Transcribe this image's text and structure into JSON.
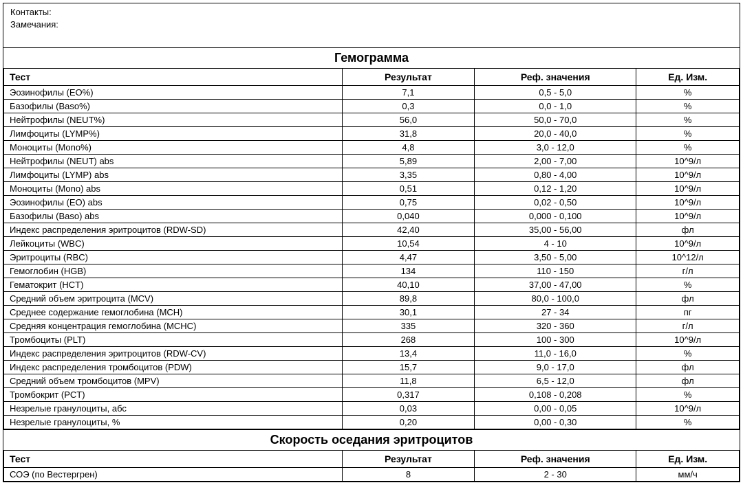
{
  "header": {
    "contacts_label": "Контакты:",
    "notes_label": "Замечания:"
  },
  "section1": {
    "title": "Гемограмма",
    "columns": {
      "test": "Тест",
      "result": "Результат",
      "ref": "Реф. значения",
      "unit": "Ед. Изм."
    },
    "rows": [
      {
        "test": "Эозинофилы (EO%)",
        "result": "7,1",
        "ref": "0,5 - 5,0",
        "unit": "%"
      },
      {
        "test": "Базофилы (Baso%)",
        "result": "0,3",
        "ref": "0,0 - 1,0",
        "unit": "%"
      },
      {
        "test": "Нейтрофилы (NEUT%)",
        "result": "56,0",
        "ref": "50,0 - 70,0",
        "unit": "%"
      },
      {
        "test": "Лимфоциты (LYMP%)",
        "result": "31,8",
        "ref": "20,0 - 40,0",
        "unit": "%"
      },
      {
        "test": "Моноциты (Mono%)",
        "result": "4,8",
        "ref": "3,0 - 12,0",
        "unit": "%"
      },
      {
        "test": "Нейтрофилы (NEUT) abs",
        "result": "5,89",
        "ref": "2,00 - 7,00",
        "unit": "10^9/л"
      },
      {
        "test": "Лимфоциты (LYMP) abs",
        "result": "3,35",
        "ref": "0,80 - 4,00",
        "unit": "10^9/л"
      },
      {
        "test": "Моноциты (Mono) abs",
        "result": "0,51",
        "ref": "0,12 - 1,20",
        "unit": "10^9/л"
      },
      {
        "test": "Эозинофилы (EO) abs",
        "result": "0,75",
        "ref": "0,02 - 0,50",
        "unit": "10^9/л"
      },
      {
        "test": "Базофилы (Baso) abs",
        "result": "0,040",
        "ref": "0,000 - 0,100",
        "unit": "10^9/л"
      },
      {
        "test": "Индекс распределения эритроцитов (RDW-SD)",
        "result": "42,40",
        "ref": "35,00 - 56,00",
        "unit": "фл"
      },
      {
        "test": "Лейкоциты (WBC)",
        "result": "10,54",
        "ref": "4 - 10",
        "unit": "10^9/л"
      },
      {
        "test": "Эритроциты (RBC)",
        "result": "4,47",
        "ref": "3,50 - 5,00",
        "unit": "10^12/л"
      },
      {
        "test": "Гемоглобин (HGB)",
        "result": "134",
        "ref": "110 - 150",
        "unit": "г/л"
      },
      {
        "test": "Гематокрит (HCT)",
        "result": "40,10",
        "ref": "37,00 - 47,00",
        "unit": "%"
      },
      {
        "test": "Средний объем эритроцита (MCV)",
        "result": "89,8",
        "ref": "80,0 - 100,0",
        "unit": "фл"
      },
      {
        "test": "Среднее содержание гемоглобина (MCH)",
        "result": "30,1",
        "ref": "27 - 34",
        "unit": "пг"
      },
      {
        "test": "Средняя концентрация гемоглобина (MCHC)",
        "result": "335",
        "ref": "320 - 360",
        "unit": "г/л"
      },
      {
        "test": "Тромбоциты (PLT)",
        "result": "268",
        "ref": "100 - 300",
        "unit": "10^9/л"
      },
      {
        "test": "Индекс распределения эритроцитов (RDW-CV)",
        "result": "13,4",
        "ref": "11,0 - 16,0",
        "unit": "%"
      },
      {
        "test": "Индекс распределения тромбоцитов (PDW)",
        "result": "15,7",
        "ref": "9,0 - 17,0",
        "unit": "фл"
      },
      {
        "test": "Средний объем тромбоцитов (MPV)",
        "result": "11,8",
        "ref": "6,5 - 12,0",
        "unit": "фл"
      },
      {
        "test": "Тромбокрит (PCT)",
        "result": "0,317",
        "ref": "0,108 - 0,208",
        "unit": "%"
      },
      {
        "test": "Незрелые гранулоциты, абс",
        "result": "0,03",
        "ref": "0,00 - 0,05",
        "unit": "10^9/л"
      },
      {
        "test": "Незрелые гранулоциты, %",
        "result": "0,20",
        "ref": "0,00 - 0,30",
        "unit": "%"
      }
    ]
  },
  "section2": {
    "title": "Скорость оседания эритроцитов",
    "columns": {
      "test": "Тест",
      "result": "Результат",
      "ref": "Реф. значения",
      "unit": "Ед. Изм."
    },
    "rows": [
      {
        "test": "СОЭ (по Вестергрен)",
        "result": "8",
        "ref": "2 - 30",
        "unit": "мм/ч"
      }
    ]
  }
}
